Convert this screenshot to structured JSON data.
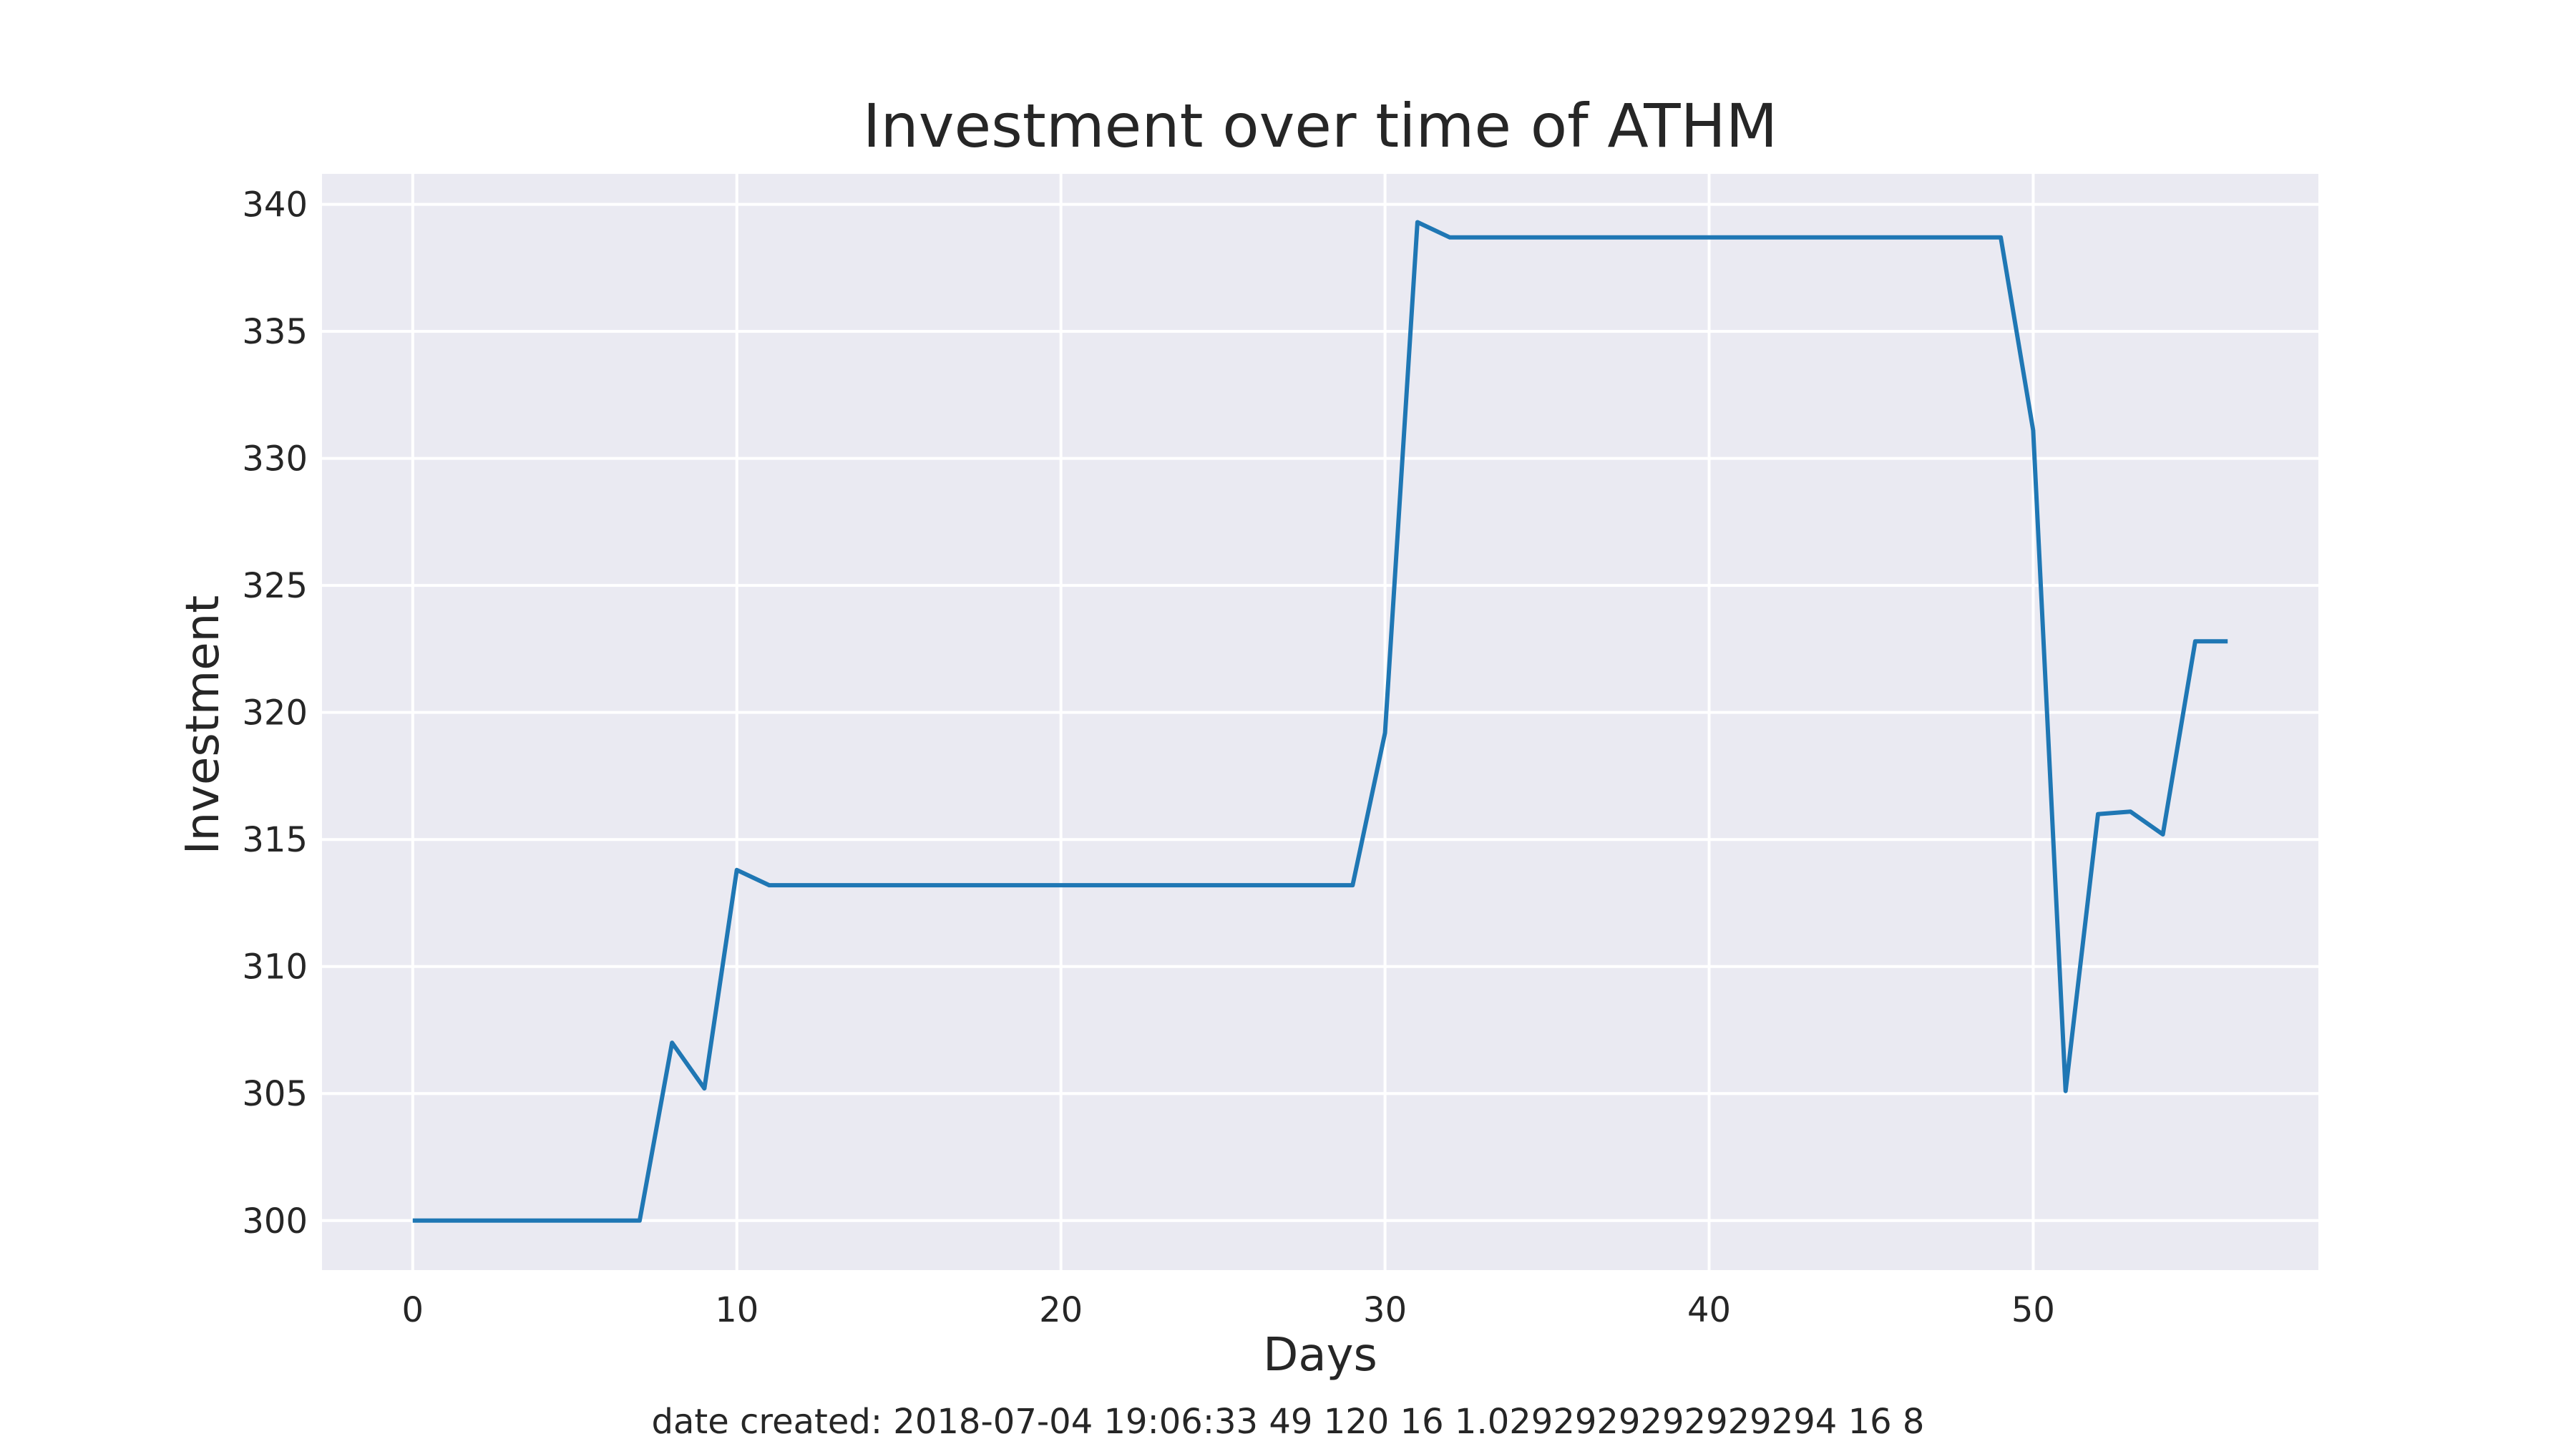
{
  "chart_data": {
    "type": "line",
    "title": "Investment over time of ATHM",
    "xlabel": "Days",
    "ylabel": "Investment",
    "footnote": "date created: 2018-07-04 19:06:33 49 120 16 1.0292929292929294 16 8",
    "xlim": [
      -2.8,
      58.8
    ],
    "ylim": [
      298.05,
      341.2
    ],
    "xticks": [
      0,
      10,
      20,
      30,
      40,
      50
    ],
    "yticks": [
      300,
      305,
      310,
      315,
      320,
      325,
      330,
      335,
      340
    ],
    "grid": true,
    "legend": "none",
    "colors": {
      "background": "#eaeaf2",
      "grid": "#ffffff",
      "line": "#1f77b4"
    },
    "series": [
      {
        "x": [
          0,
          1,
          2,
          3,
          4,
          5,
          6,
          7,
          8,
          9,
          10,
          11,
          12,
          13,
          14,
          15,
          16,
          17,
          18,
          19,
          20,
          21,
          22,
          23,
          24,
          25,
          26,
          27,
          28,
          29,
          30,
          31,
          32,
          33,
          34,
          35,
          36,
          37,
          38,
          39,
          40,
          41,
          42,
          43,
          44,
          45,
          46,
          47,
          48,
          49,
          50,
          51,
          52,
          53,
          54,
          55,
          56
        ],
        "values": [
          300.0,
          300.0,
          300.0,
          300.0,
          300.0,
          300.0,
          300.0,
          300.0,
          307.0,
          305.2,
          313.8,
          313.2,
          313.2,
          313.2,
          313.2,
          313.2,
          313.2,
          313.2,
          313.2,
          313.2,
          313.2,
          313.2,
          313.2,
          313.2,
          313.2,
          313.2,
          313.2,
          313.2,
          313.2,
          313.2,
          319.2,
          339.3,
          338.7,
          338.7,
          338.7,
          338.7,
          338.7,
          338.7,
          338.7,
          338.7,
          338.7,
          338.7,
          338.7,
          338.7,
          338.7,
          338.7,
          338.7,
          338.7,
          338.7,
          338.7,
          331.1,
          305.1,
          316.0,
          316.1,
          315.2,
          322.8,
          322.8
        ]
      }
    ]
  }
}
